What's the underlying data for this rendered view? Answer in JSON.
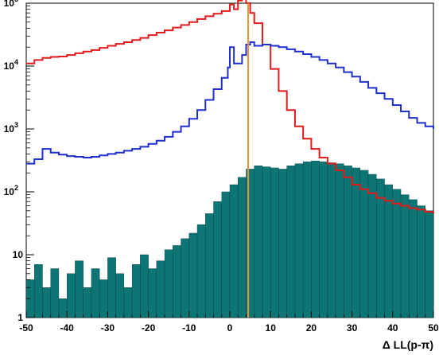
{
  "chart_data": {
    "type": "histogram",
    "xlabel": "Δ LL(p-π)",
    "xlim": [
      -50,
      50
    ],
    "ylim": [
      1,
      100000
    ],
    "y_scale": "log",
    "grid": false,
    "x_ticks": [
      "-50",
      "-40",
      "-30",
      "-20",
      "-10",
      "0",
      "10",
      "20",
      "30",
      "40",
      "50"
    ],
    "y_ticks": [
      {
        "value": 1,
        "base": "1",
        "exp": ""
      },
      {
        "value": 10,
        "base": "10",
        "exp": ""
      },
      {
        "value": 100,
        "base": "10",
        "exp": "2"
      },
      {
        "value": 1000,
        "base": "10",
        "exp": "3"
      },
      {
        "value": 10000,
        "base": "10",
        "exp": "4"
      },
      {
        "value": 100000,
        "base": "10",
        "exp": "5"
      }
    ],
    "cut_line": {
      "x": 4.5,
      "color": "#e8923a"
    },
    "series": [
      {
        "color": "#e41a1c",
        "style": "step",
        "x": [
          -50,
          -48,
          -46,
          -44,
          -42,
          -40,
          -38,
          -36,
          -34,
          -32,
          -30,
          -28,
          -26,
          -24,
          -22,
          -20,
          -18,
          -16,
          -14,
          -12,
          -10,
          -8,
          -6,
          -4,
          -2,
          0,
          1,
          2,
          3,
          4,
          5,
          6,
          8,
          10,
          12,
          14,
          16,
          18,
          20,
          22,
          24,
          26,
          28,
          30,
          32,
          34,
          36,
          38,
          40,
          42,
          44,
          46,
          48,
          50
        ],
        "y": [
          11000,
          12500,
          13500,
          14000,
          14200,
          15000,
          16000,
          17000,
          18000,
          19500,
          21000,
          22500,
          24000,
          26000,
          28000,
          31000,
          34000,
          37000,
          41000,
          45000,
          50000,
          56000,
          62000,
          68000,
          75000,
          95000,
          80000,
          110000,
          120000,
          100000,
          70000,
          48000,
          22000,
          9000,
          4000,
          2000,
          1100,
          700,
          480,
          350,
          280,
          220,
          170,
          130,
          110,
          95,
          80,
          72,
          65,
          60,
          55,
          52,
          48,
          45
        ]
      },
      {
        "color": "#1f2fd0",
        "style": "step",
        "x": [
          -50,
          -48,
          -46,
          -44,
          -42,
          -40,
          -38,
          -36,
          -34,
          -32,
          -30,
          -28,
          -26,
          -24,
          -22,
          -20,
          -18,
          -16,
          -14,
          -12,
          -10,
          -8,
          -6,
          -4,
          -2,
          -0.5,
          0,
          1,
          2,
          3,
          4,
          5,
          6,
          8,
          10,
          12,
          14,
          16,
          18,
          20,
          22,
          24,
          26,
          28,
          30,
          32,
          34,
          36,
          38,
          40,
          42,
          44,
          46,
          48,
          50
        ],
        "y": [
          280,
          330,
          480,
          420,
          390,
          370,
          360,
          350,
          360,
          380,
          400,
          420,
          450,
          480,
          520,
          580,
          650,
          750,
          900,
          1100,
          1450,
          2000,
          2900,
          4300,
          6500,
          9500,
          20000,
          11000,
          11000,
          15000,
          22000,
          24000,
          21000,
          22000,
          21000,
          20000,
          18500,
          17000,
          15500,
          14000,
          12500,
          11000,
          9500,
          8000,
          6800,
          5600,
          4500,
          3700,
          3000,
          2400,
          1900,
          1500,
          1250,
          1100,
          1000
        ]
      },
      {
        "color": "#0e7575",
        "style": "filled-histogram",
        "x": [
          -50,
          -48,
          -46,
          -44,
          -42,
          -40,
          -38,
          -36,
          -34,
          -32,
          -30,
          -28,
          -26,
          -24,
          -22,
          -20,
          -18,
          -16,
          -14,
          -12,
          -10,
          -8,
          -6,
          -4,
          -2,
          0,
          2,
          4,
          6,
          8,
          10,
          12,
          14,
          16,
          18,
          20,
          22,
          24,
          26,
          28,
          30,
          32,
          34,
          36,
          38,
          40,
          42,
          44,
          46,
          48
        ],
        "y": [
          4,
          7,
          3,
          6,
          2,
          5,
          8,
          3,
          6,
          4,
          9,
          5,
          3,
          7,
          10,
          6,
          8,
          12,
          14,
          18,
          22,
          30,
          45,
          70,
          100,
          130,
          170,
          230,
          260,
          250,
          240,
          230,
          260,
          280,
          300,
          310,
          300,
          290,
          280,
          260,
          240,
          220,
          190,
          160,
          130,
          110,
          90,
          75,
          60,
          50
        ]
      }
    ]
  }
}
